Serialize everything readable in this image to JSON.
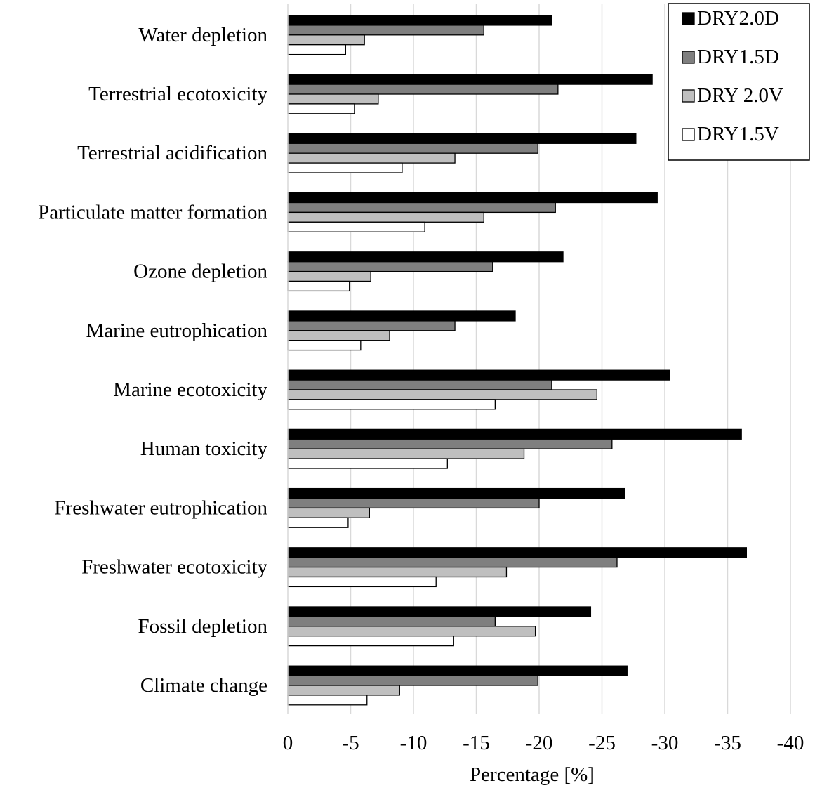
{
  "chart_data": {
    "type": "bar",
    "orientation": "horizontal",
    "categories": [
      "Water depletion",
      "Terrestrial ecotoxicity",
      "Terrestrial acidification",
      "Particulate matter formation",
      "Ozone depletion",
      "Marine eutrophication",
      "Marine ecotoxicity",
      "Human toxicity",
      "Freshwater eutrophication",
      "Freshwater ecotoxicity",
      "Fossil depletion",
      "Climate change"
    ],
    "series": [
      {
        "name": "DRY2.0D",
        "color": "#000000",
        "values": [
          -21.0,
          -29.0,
          -27.7,
          -29.4,
          -21.9,
          -18.1,
          -30.4,
          -36.1,
          -26.8,
          -36.5,
          -24.1,
          -27.0
        ]
      },
      {
        "name": "DRY1.5D",
        "color": "#7f7f7f",
        "values": [
          -15.6,
          -21.5,
          -19.9,
          -21.3,
          -16.3,
          -13.3,
          -21.0,
          -25.8,
          -20.0,
          -26.2,
          -16.5,
          -19.9
        ]
      },
      {
        "name": "DRY 2.0V",
        "color": "#bfbfbf",
        "values": [
          -6.1,
          -7.2,
          -13.3,
          -15.6,
          -6.6,
          -8.1,
          -24.6,
          -18.8,
          -6.5,
          -17.4,
          -19.7,
          -8.9
        ]
      },
      {
        "name": "DRY1.5V",
        "color": "#ffffff",
        "values": [
          -4.6,
          -5.3,
          -9.1,
          -10.9,
          -4.9,
          -5.8,
          -16.5,
          -12.7,
          -4.8,
          -11.8,
          -13.2,
          -6.3
        ]
      }
    ],
    "xlabel": "Percentage  [%]",
    "ylabel": "",
    "title": "",
    "xlim": [
      0,
      -40
    ],
    "xticks": [
      0,
      -5,
      -10,
      -15,
      -20,
      -25,
      -30,
      -35,
      -40
    ],
    "xtick_labels": [
      "0",
      "-5",
      "-10",
      "-15",
      "-20",
      "-25",
      "-30",
      "-35",
      "-40"
    ],
    "grid": "vertical",
    "legend_position": "top-right",
    "gridline_color": "#d9d9d9"
  }
}
